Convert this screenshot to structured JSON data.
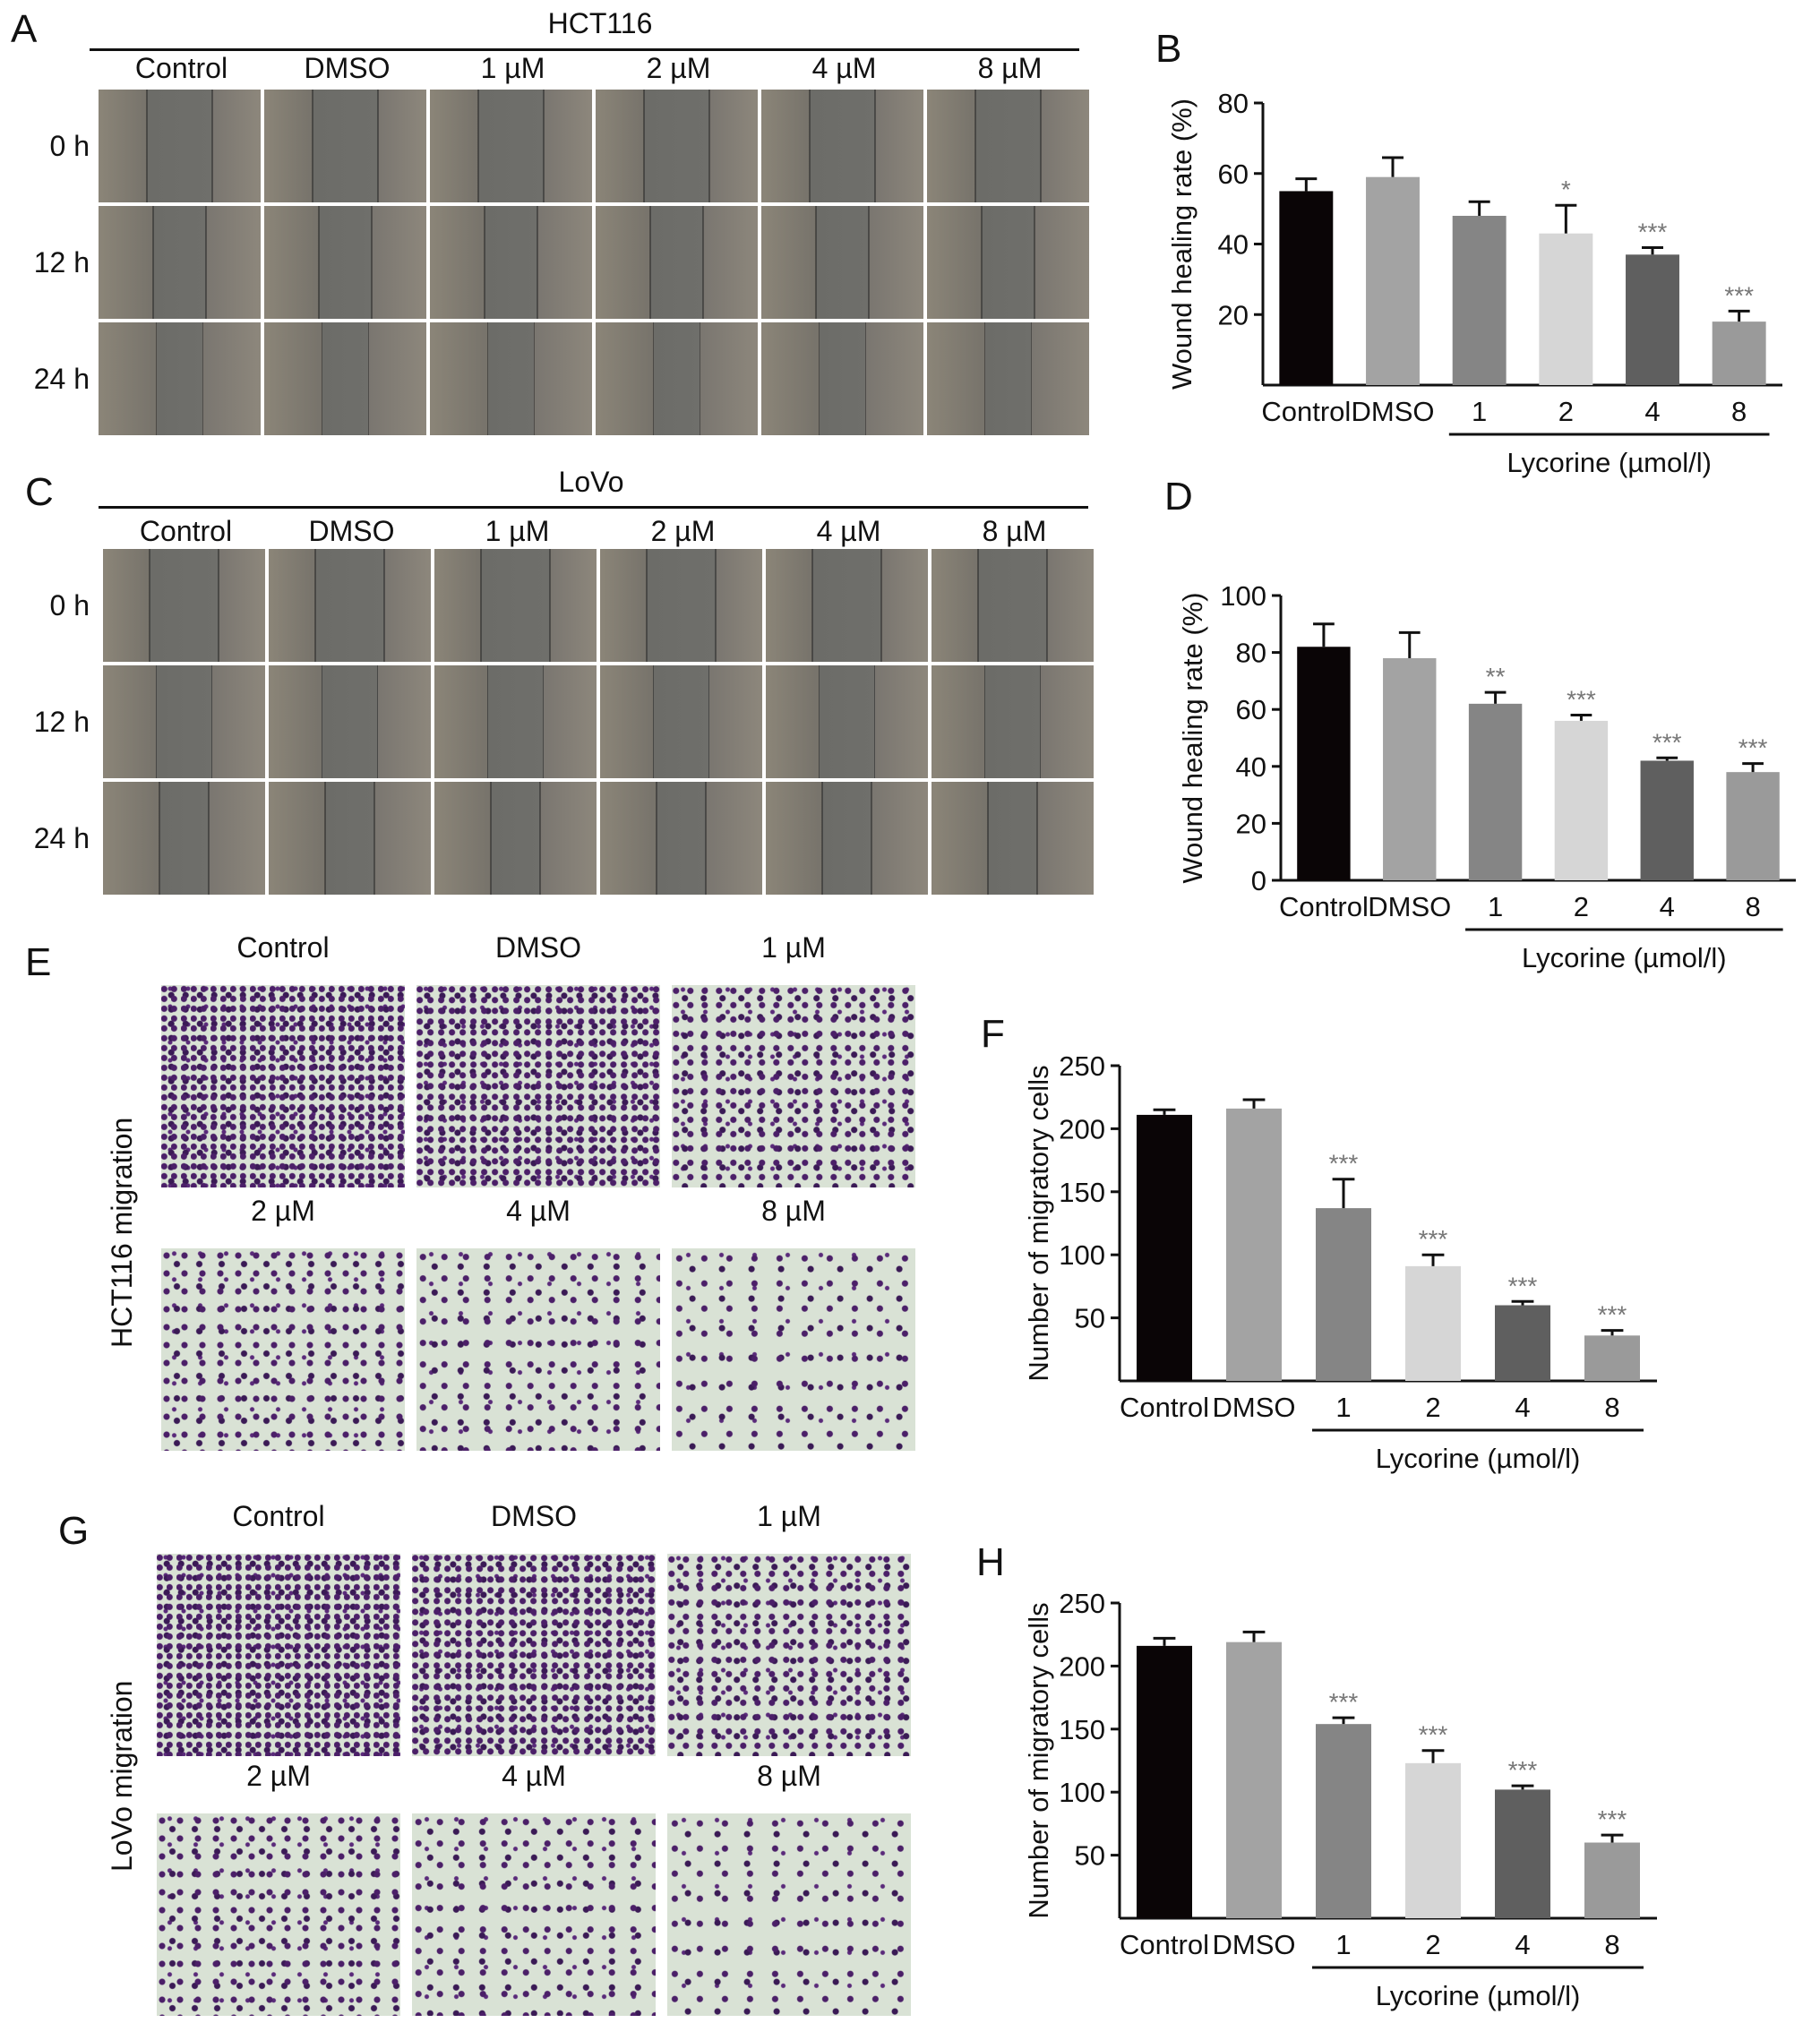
{
  "panels": {
    "A": {
      "letter": "A",
      "title": "HCT116"
    },
    "B": {
      "letter": "B"
    },
    "C": {
      "letter": "C",
      "title": "LoVo"
    },
    "D": {
      "letter": "D"
    },
    "E": {
      "letter": "E",
      "side_label": "HCT116 migration"
    },
    "F": {
      "letter": "F"
    },
    "G": {
      "letter": "G",
      "side_label": "LoVo migration"
    },
    "H": {
      "letter": "H"
    }
  },
  "columns": [
    "Control",
    "DMSO",
    "1 µM",
    "2 µM",
    "4 µM",
    "8 µM"
  ],
  "rows": [
    "0 h",
    "12 h",
    "24 h"
  ],
  "colors": {
    "wound_gray": "#7d7d78",
    "stain_purple": "#5a2a7a",
    "stain_bg": "#d9e2d5",
    "bar_colors": [
      "#0a0506",
      "#a3a3a3",
      "#858585",
      "#d6d6d6",
      "#5f5f5f",
      "#9a9a9a"
    ]
  },
  "chart_data": [
    {
      "id": "B",
      "type": "bar",
      "categories": [
        "Control",
        "DMSO",
        "1",
        "2",
        "4",
        "8"
      ],
      "values": [
        55,
        59,
        48,
        43,
        37,
        18
      ],
      "errors": [
        3.5,
        5.5,
        4,
        8,
        2,
        3
      ],
      "sig": [
        "",
        "",
        "",
        "*",
        "***",
        "***"
      ],
      "ylabel": "Wound healing rate (%)",
      "ylim": [
        0,
        80
      ],
      "yticks": [
        "20",
        "40",
        "60",
        "80"
      ],
      "group_label": "Lycorine (µmol/l)"
    },
    {
      "id": "D",
      "type": "bar",
      "categories": [
        "Control",
        "DMSO",
        "1",
        "2",
        "4",
        "8"
      ],
      "values": [
        82,
        78,
        62,
        56,
        42,
        38
      ],
      "errors": [
        8,
        9,
        4,
        2,
        1,
        3
      ],
      "sig": [
        "",
        "",
        "**",
        "***",
        "***",
        "***"
      ],
      "ylabel": "Wound healing rate (%)",
      "ylim": [
        0,
        100
      ],
      "yticks": [
        "0",
        "20",
        "40",
        "60",
        "80",
        "100"
      ],
      "group_label": "Lycorine (µmol/l)"
    },
    {
      "id": "F",
      "type": "bar",
      "categories": [
        "Control",
        "DMSO",
        "1",
        "2",
        "4",
        "8"
      ],
      "values": [
        211,
        216,
        137,
        91,
        60,
        36
      ],
      "errors": [
        4,
        7,
        23,
        9,
        3,
        4
      ],
      "sig": [
        "",
        "",
        "***",
        "***",
        "***",
        "***"
      ],
      "ylabel": "Number of migratory cells",
      "ylim": [
        0,
        250
      ],
      "yticks": [
        "50",
        "100",
        "150",
        "200",
        "250"
      ],
      "group_label": "Lycorine (µmol/l)"
    },
    {
      "id": "H",
      "type": "bar",
      "categories": [
        "Control",
        "DMSO",
        "1",
        "2",
        "4",
        "8"
      ],
      "values": [
        216,
        219,
        154,
        123,
        102,
        60
      ],
      "errors": [
        6,
        8,
        5,
        10,
        3,
        6
      ],
      "sig": [
        "",
        "",
        "***",
        "***",
        "***",
        "***"
      ],
      "ylabel": "Number of migratory cells",
      "ylim": [
        0,
        250
      ],
      "yticks": [
        "50",
        "100",
        "150",
        "200",
        "250"
      ],
      "group_label": "Lycorine (µmol/l)"
    }
  ]
}
